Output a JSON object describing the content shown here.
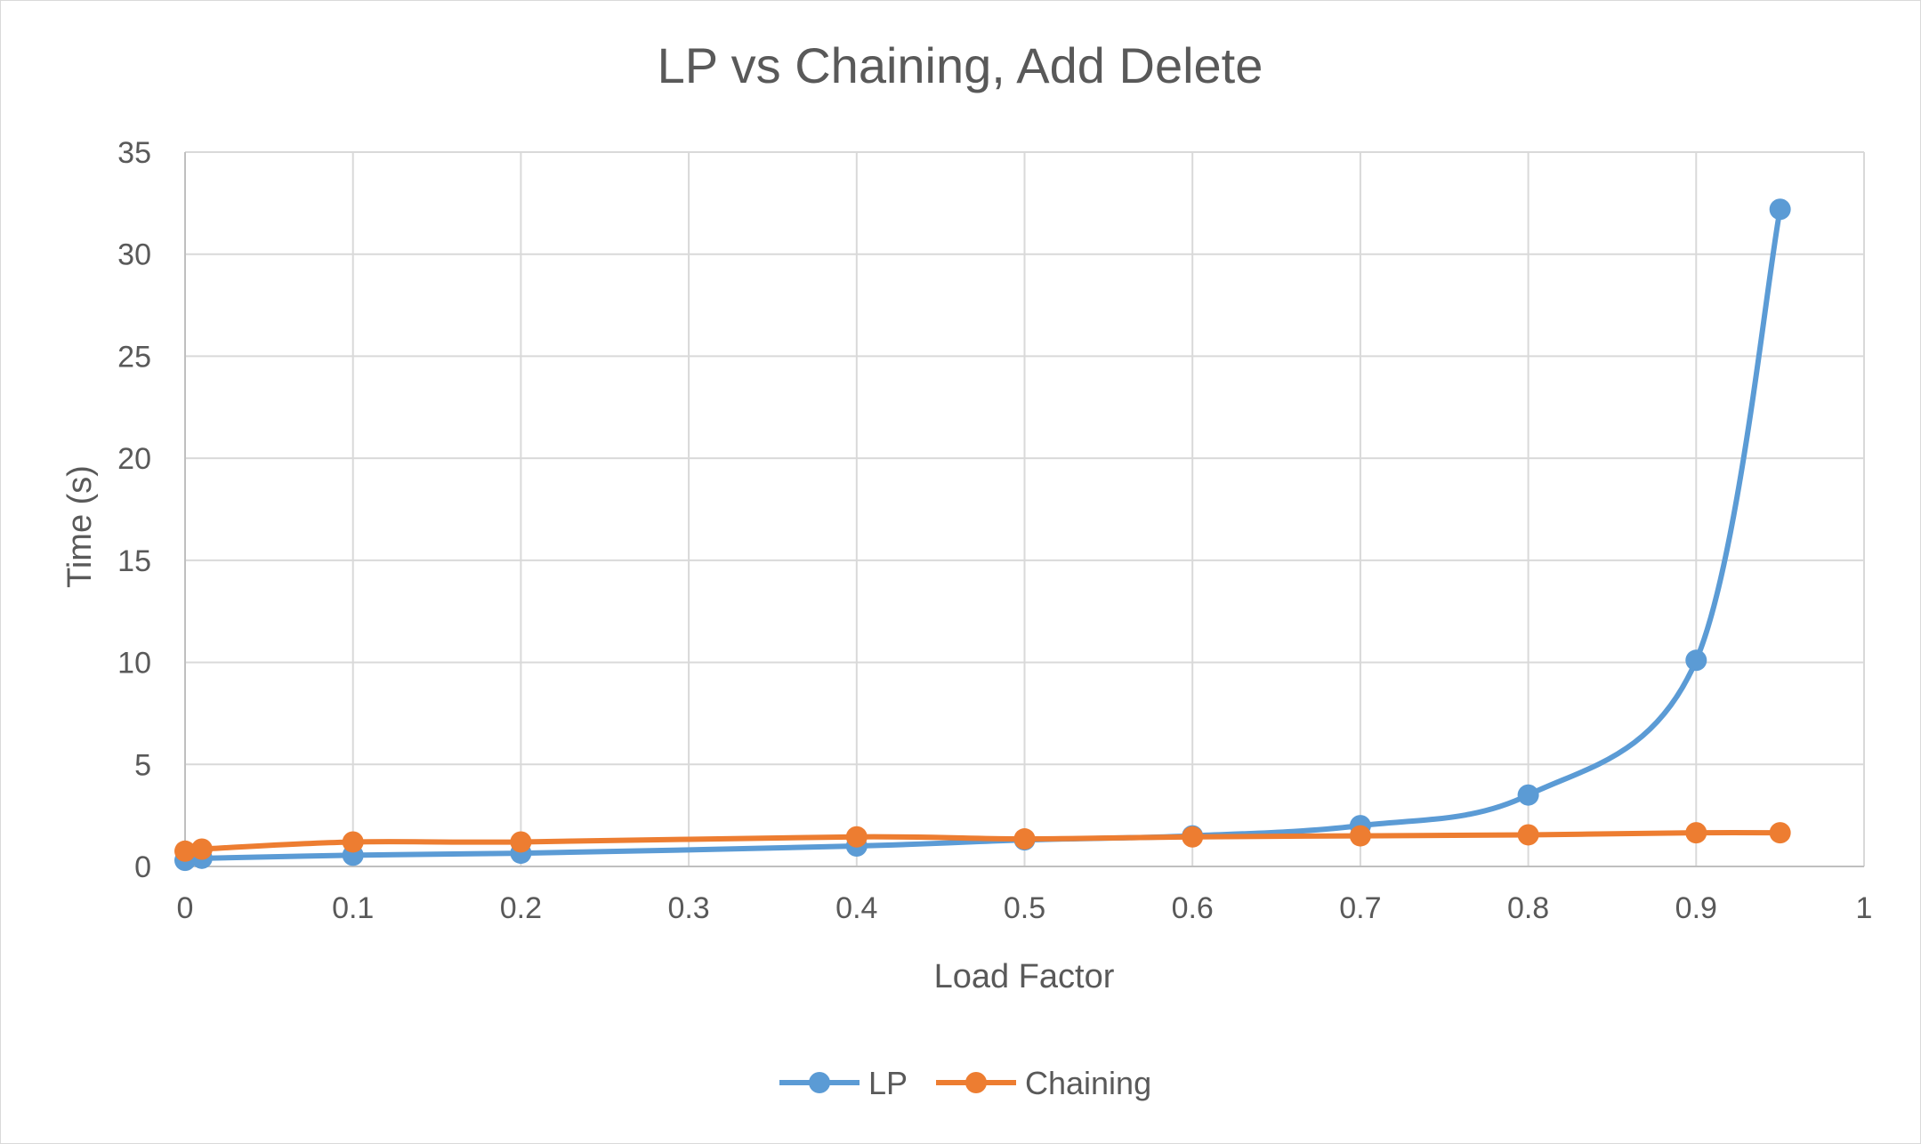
{
  "chart_data": {
    "type": "line",
    "title": "LP vs Chaining, Add Delete",
    "xlabel": "Load Factor",
    "ylabel": "Time (s)",
    "xlim": [
      0,
      1
    ],
    "ylim": [
      0,
      35
    ],
    "x_ticks": [
      "0",
      "0.1",
      "0.2",
      "0.3",
      "0.4",
      "0.5",
      "0.6",
      "0.7",
      "0.8",
      "0.9",
      "1"
    ],
    "y_ticks": [
      "0",
      "5",
      "10",
      "15",
      "20",
      "25",
      "30",
      "35"
    ],
    "grid": true,
    "smooth": true,
    "legend_position": "bottom",
    "series": [
      {
        "name": "LP",
        "color": "#5b9bd5",
        "points": [
          {
            "x": 0,
            "y": 0.3
          },
          {
            "x": 0.01,
            "y": 0.4
          },
          {
            "x": 0.1,
            "y": 0.55
          },
          {
            "x": 0.2,
            "y": 0.65
          },
          {
            "x": 0.4,
            "y": 1.0
          },
          {
            "x": 0.5,
            "y": 1.3
          },
          {
            "x": 0.6,
            "y": 1.5
          },
          {
            "x": 0.7,
            "y": 2.0
          },
          {
            "x": 0.8,
            "y": 3.5
          },
          {
            "x": 0.9,
            "y": 10.1
          },
          {
            "x": 0.95,
            "y": 32.2
          }
        ]
      },
      {
        "name": "Chaining",
        "color": "#ed7d31",
        "points": [
          {
            "x": 0,
            "y": 0.75
          },
          {
            "x": 0.01,
            "y": 0.85
          },
          {
            "x": 0.1,
            "y": 1.2
          },
          {
            "x": 0.2,
            "y": 1.2
          },
          {
            "x": 0.4,
            "y": 1.45
          },
          {
            "x": 0.5,
            "y": 1.35
          },
          {
            "x": 0.6,
            "y": 1.45
          },
          {
            "x": 0.7,
            "y": 1.5
          },
          {
            "x": 0.8,
            "y": 1.55
          },
          {
            "x": 0.9,
            "y": 1.65
          },
          {
            "x": 0.95,
            "y": 1.65
          }
        ]
      }
    ]
  }
}
